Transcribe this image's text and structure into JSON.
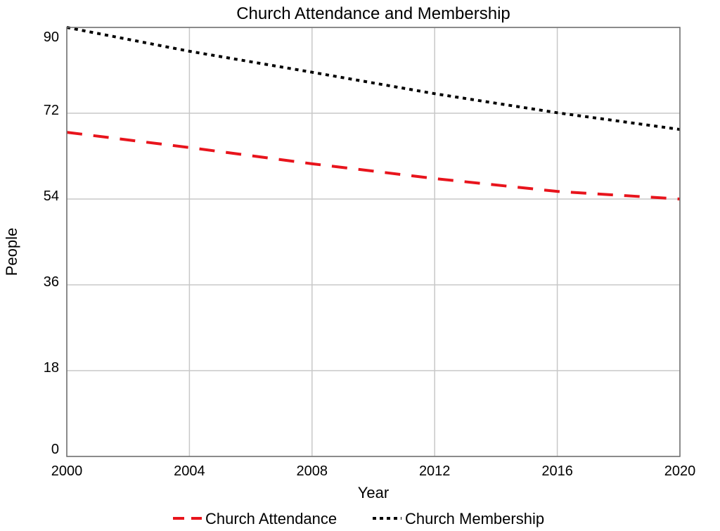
{
  "chart_data": {
    "type": "line",
    "title": "Church Attendance and Membership",
    "xlabel": "Year",
    "ylabel": "People",
    "x": [
      2000,
      2004,
      2008,
      2012,
      2016,
      2020
    ],
    "xlim": [
      2000,
      2020
    ],
    "ylim": [
      0,
      90
    ],
    "x_ticks": [
      "2000",
      "2004",
      "2008",
      "2012",
      "2016",
      "2020"
    ],
    "y_ticks": [
      "0",
      "18",
      "36",
      "54",
      "72",
      "90"
    ],
    "grid": true,
    "legend": "bottom",
    "series": [
      {
        "name": "Church Attendance",
        "color": "#e8141c",
        "style": "dashed",
        "values": [
          68,
          64.8,
          61.4,
          58.3,
          55.6,
          54
        ]
      },
      {
        "name": "Church Membership",
        "color": "#000000",
        "style": "dotted",
        "values": [
          90,
          85.0,
          80.6,
          76.1,
          72.1,
          68.6
        ]
      }
    ]
  }
}
